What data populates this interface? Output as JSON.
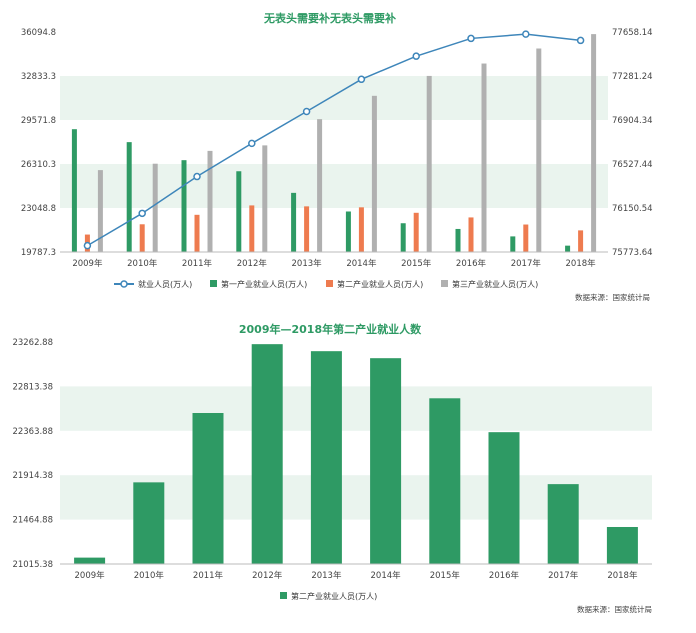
{
  "chart_data": [
    {
      "type": "bar",
      "title": "无表头需要补无表头需要补",
      "categories": [
        "2009年",
        "2010年",
        "2011年",
        "2012年",
        "2013年",
        "2014年",
        "2015年",
        "2016年",
        "2017年",
        "2018年"
      ],
      "series": [
        {
          "name": "就业人员(万人)",
          "type": "line",
          "axis": "right",
          "color": "#3e86ba",
          "values": [
            75828,
            76105,
            76420,
            76704,
            76977,
            77253,
            77451,
            77603,
            77640,
            77586
          ]
        },
        {
          "name": "第一产业就业人员(万人)",
          "type": "bar",
          "axis": "left",
          "color": "#2e9a64",
          "values": [
            28890,
            27931,
            26594,
            25773,
            24171,
            22790,
            21919,
            21496,
            20944,
            20258
          ]
        },
        {
          "name": "第二产业就业人员(万人)",
          "type": "bar",
          "axis": "left",
          "color": "#ee7b4f",
          "values": [
            21080,
            21842,
            22544,
            23241,
            23170,
            23099,
            22693,
            22350,
            21824,
            21390
          ]
        },
        {
          "name": "第三产业就业人员(万人)",
          "type": "bar",
          "axis": "left",
          "color": "#b0b0b0",
          "values": [
            25857,
            26332,
            27282,
            27690,
            29636,
            31364,
            32839,
            33757,
            34872,
            35938
          ]
        }
      ],
      "y_left_ticks": [
        "19787.3",
        "23048.8",
        "26310.3",
        "29571.8",
        "32833.3",
        "36094.8"
      ],
      "y_right_ticks": [
        "75773.64",
        "76150.54",
        "76527.44",
        "76904.34",
        "77281.24",
        "77658.14"
      ],
      "ylim_left": [
        19787.3,
        36094.8
      ],
      "ylim_right": [
        75773.64,
        77658.14
      ],
      "source": "数据来源：国家统计局"
    },
    {
      "type": "bar",
      "title": "2009年—2018年第二产业就业人数",
      "categories": [
        "2009年",
        "2010年",
        "2011年",
        "2012年",
        "2013年",
        "2014年",
        "2015年",
        "2016年",
        "2017年",
        "2018年"
      ],
      "series": [
        {
          "name": "第二产业就业人员(万人)",
          "color": "#2e9a64",
          "values": [
            21080,
            21842,
            22544,
            23241,
            23170,
            23099,
            22693,
            22350,
            21824,
            21390
          ]
        }
      ],
      "y_ticks": [
        "21015.38",
        "21464.88",
        "21914.38",
        "22363.88",
        "22813.38",
        "23262.88"
      ],
      "ylim": [
        21015.38,
        23262.88
      ],
      "source": "数据来源：国家统计局"
    }
  ]
}
